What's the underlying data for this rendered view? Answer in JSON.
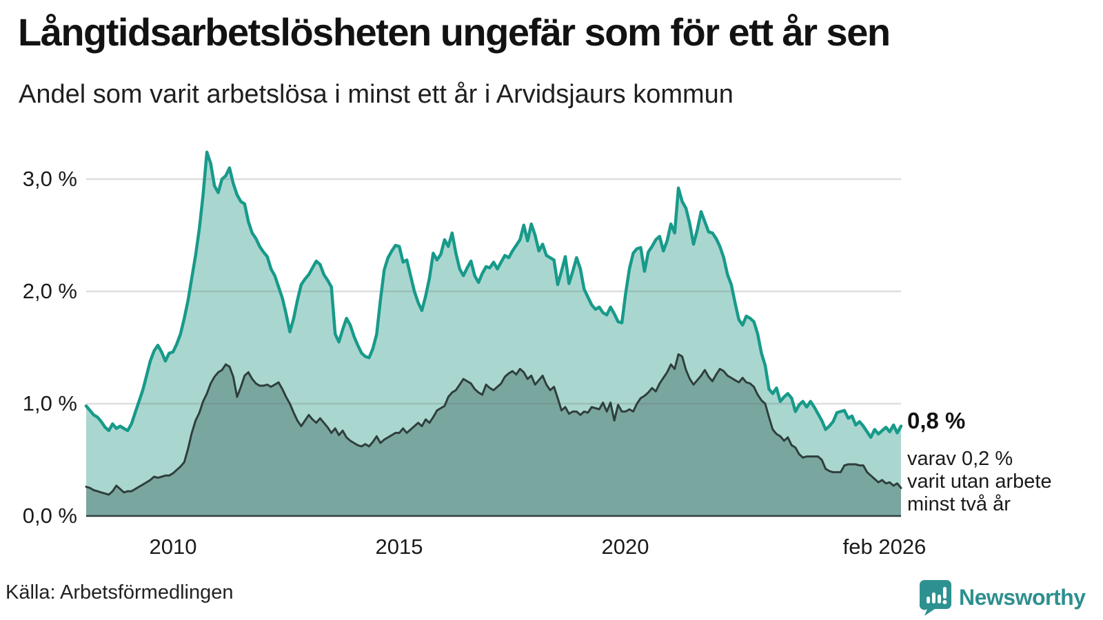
{
  "header": {
    "title": "Långtidsarbetslösheten ungefär som för ett år sen",
    "subtitle": "Andel som varit arbetslösa i minst ett år i Arvidsjaurs kommun"
  },
  "y_axis": {
    "labels": [
      "3,0 %",
      "2,0 %",
      "1,0 %",
      "0,0 %"
    ]
  },
  "x_axis": {
    "labels": [
      "2010",
      "2015",
      "2020",
      "feb 2026"
    ]
  },
  "annotation": {
    "value_label": "0,8 %",
    "detail_line_1": "varav 0,2 %",
    "detail_line_2": "varit utan arbete",
    "detail_line_3": "minst två år"
  },
  "footer": {
    "source": "Källa: Arbetsförmedlingen",
    "brand": "Newsworthy"
  },
  "colors": {
    "accent_line": "#189a8a",
    "accent_fill": "#a9d7d0",
    "dark_line": "#2f3e3c",
    "dark_fill": "#7aa6a0",
    "gridline": "#6b6b6b",
    "brand_teal": "#2e8f8f"
  },
  "chart_data": {
    "type": "area",
    "title": "Långtidsarbetslösheten ungefär som för ett år sen",
    "subtitle": "Andel som varit arbetslösa i minst ett år i Arvidsjaurs kommun",
    "unit": "%",
    "frequency": "monthly",
    "x_start": 2008.0833,
    "x_end": 2026.0833,
    "x_ticks": [
      {
        "value": 2010.0,
        "label": "2010"
      },
      {
        "value": 2015.0,
        "label": "2015"
      },
      {
        "value": 2020.0,
        "label": "2020"
      },
      {
        "value": 2026.0833,
        "label": "feb 2026"
      }
    ],
    "ylim": [
      0,
      3.35
    ],
    "yticks": [
      0,
      1,
      2,
      3
    ],
    "grid": true,
    "legend_position": "none",
    "last_point_labels": [
      "0,8 %",
      "varav 0,2 % varit utan arbete minst två år"
    ],
    "series": [
      {
        "name": "Andel arbetslösa minst ett år",
        "final_value": 0.8,
        "values": [
          0.98,
          0.94,
          0.9,
          0.88,
          0.84,
          0.79,
          0.76,
          0.82,
          0.78,
          0.8,
          0.78,
          0.76,
          0.82,
          0.92,
          1.02,
          1.12,
          1.25,
          1.38,
          1.47,
          1.52,
          1.46,
          1.38,
          1.45,
          1.46,
          1.53,
          1.62,
          1.76,
          1.92,
          2.12,
          2.32,
          2.56,
          2.86,
          3.24,
          3.14,
          2.94,
          2.88,
          3.0,
          3.03,
          3.1,
          2.96,
          2.86,
          2.8,
          2.78,
          2.62,
          2.52,
          2.47,
          2.4,
          2.35,
          2.31,
          2.2,
          2.14,
          2.04,
          1.94,
          1.8,
          1.64,
          1.76,
          1.92,
          2.06,
          2.11,
          2.15,
          2.21,
          2.27,
          2.24,
          2.15,
          2.1,
          2.04,
          1.62,
          1.55,
          1.66,
          1.76,
          1.7,
          1.6,
          1.52,
          1.45,
          1.42,
          1.41,
          1.49,
          1.62,
          1.92,
          2.19,
          2.3,
          2.36,
          2.41,
          2.4,
          2.26,
          2.28,
          2.14,
          2.0,
          1.9,
          1.83,
          1.96,
          2.12,
          2.34,
          2.28,
          2.33,
          2.46,
          2.4,
          2.52,
          2.34,
          2.2,
          2.14,
          2.21,
          2.27,
          2.14,
          2.08,
          2.16,
          2.22,
          2.21,
          2.26,
          2.2,
          2.26,
          2.32,
          2.3,
          2.36,
          2.41,
          2.46,
          2.59,
          2.45,
          2.6,
          2.5,
          2.36,
          2.42,
          2.32,
          2.3,
          2.28,
          2.06,
          2.18,
          2.31,
          2.07,
          2.18,
          2.3,
          2.2,
          2.02,
          1.95,
          1.88,
          1.84,
          1.86,
          1.81,
          1.79,
          1.86,
          1.8,
          1.73,
          1.72,
          1.98,
          2.2,
          2.34,
          2.38,
          2.39,
          2.18,
          2.35,
          2.4,
          2.46,
          2.49,
          2.36,
          2.45,
          2.6,
          2.52,
          2.92,
          2.8,
          2.74,
          2.6,
          2.42,
          2.55,
          2.71,
          2.62,
          2.53,
          2.52,
          2.47,
          2.4,
          2.3,
          2.15,
          2.06,
          1.9,
          1.75,
          1.7,
          1.78,
          1.76,
          1.73,
          1.62,
          1.45,
          1.34,
          1.13,
          1.09,
          1.14,
          1.02,
          1.06,
          1.09,
          1.05,
          0.93,
          0.99,
          1.02,
          0.97,
          1.02,
          0.97,
          0.91,
          0.85,
          0.77,
          0.8,
          0.84,
          0.92,
          0.93,
          0.94,
          0.87,
          0.89,
          0.81,
          0.84,
          0.8,
          0.75,
          0.7,
          0.77,
          0.73,
          0.76,
          0.79,
          0.75,
          0.81,
          0.74,
          0.8
        ]
      },
      {
        "name": "Andel utan arbete minst två år",
        "final_value": 0.2,
        "values": [
          0.26,
          0.25,
          0.23,
          0.22,
          0.21,
          0.2,
          0.19,
          0.22,
          0.27,
          0.24,
          0.21,
          0.22,
          0.22,
          0.24,
          0.26,
          0.28,
          0.3,
          0.32,
          0.35,
          0.34,
          0.35,
          0.36,
          0.36,
          0.38,
          0.41,
          0.44,
          0.48,
          0.6,
          0.74,
          0.85,
          0.92,
          1.02,
          1.09,
          1.18,
          1.24,
          1.28,
          1.3,
          1.35,
          1.33,
          1.24,
          1.06,
          1.15,
          1.25,
          1.28,
          1.22,
          1.18,
          1.16,
          1.16,
          1.17,
          1.15,
          1.17,
          1.19,
          1.13,
          1.06,
          1.0,
          0.92,
          0.85,
          0.8,
          0.85,
          0.9,
          0.86,
          0.83,
          0.87,
          0.83,
          0.79,
          0.74,
          0.78,
          0.72,
          0.76,
          0.7,
          0.67,
          0.65,
          0.63,
          0.62,
          0.64,
          0.62,
          0.66,
          0.71,
          0.65,
          0.68,
          0.7,
          0.72,
          0.74,
          0.74,
          0.78,
          0.74,
          0.77,
          0.8,
          0.83,
          0.8,
          0.86,
          0.83,
          0.88,
          0.94,
          0.96,
          0.98,
          1.06,
          1.1,
          1.12,
          1.17,
          1.22,
          1.2,
          1.18,
          1.13,
          1.1,
          1.08,
          1.17,
          1.14,
          1.12,
          1.15,
          1.18,
          1.24,
          1.27,
          1.29,
          1.26,
          1.31,
          1.28,
          1.22,
          1.25,
          1.17,
          1.21,
          1.25,
          1.17,
          1.12,
          1.15,
          1.05,
          0.94,
          0.97,
          0.91,
          0.93,
          0.93,
          0.9,
          0.93,
          0.92,
          0.97,
          0.96,
          0.95,
          1.01,
          0.93,
          1.01,
          0.85,
          0.99,
          0.93,
          0.93,
          0.95,
          0.93,
          1.0,
          1.05,
          1.07,
          1.1,
          1.14,
          1.11,
          1.18,
          1.23,
          1.28,
          1.35,
          1.31,
          1.44,
          1.42,
          1.3,
          1.22,
          1.17,
          1.21,
          1.25,
          1.3,
          1.24,
          1.2,
          1.26,
          1.31,
          1.29,
          1.25,
          1.23,
          1.21,
          1.19,
          1.23,
          1.19,
          1.18,
          1.15,
          1.08,
          1.03,
          1.0,
          0.88,
          0.77,
          0.73,
          0.71,
          0.67,
          0.7,
          0.63,
          0.61,
          0.55,
          0.52,
          0.53,
          0.53,
          0.53,
          0.53,
          0.5,
          0.42,
          0.4,
          0.39,
          0.39,
          0.39,
          0.45,
          0.46,
          0.46,
          0.46,
          0.45,
          0.45,
          0.39,
          0.36,
          0.33,
          0.3,
          0.32,
          0.29,
          0.3,
          0.27,
          0.29,
          0.25
        ]
      }
    ]
  }
}
